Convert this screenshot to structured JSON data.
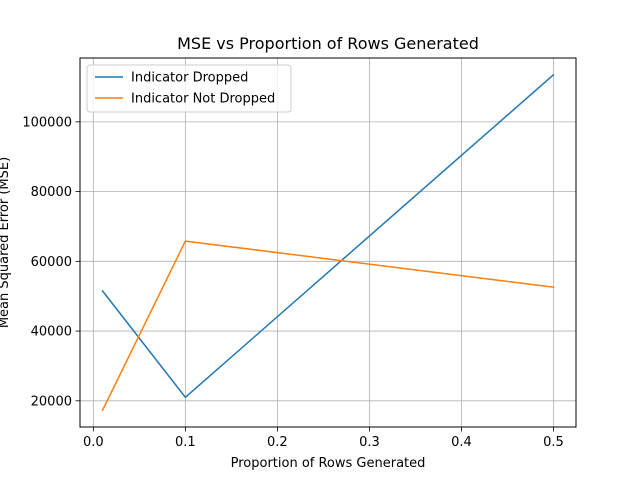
{
  "chart_data": {
    "type": "line",
    "title": "MSE vs Proportion of Rows Generated",
    "xlabel": "Proportion of Rows Generated",
    "ylabel": "Mean Squared Error (MSE)",
    "x": [
      0.01,
      0.1,
      0.5
    ],
    "series": [
      {
        "name": "Indicator Dropped",
        "color": "#1f77b4",
        "values": [
          51500,
          21000,
          113500
        ]
      },
      {
        "name": "Indicator Not Dropped",
        "color": "#ff7f0e",
        "values": [
          17300,
          65800,
          52600
        ]
      }
    ],
    "xlim": [
      -0.0145,
      0.5245
    ],
    "ylim": [
      12490,
      118310
    ],
    "xticks": [
      0.0,
      0.1,
      0.2,
      0.3,
      0.4,
      0.5
    ],
    "xtick_labels": [
      "0.0",
      "0.1",
      "0.2",
      "0.3",
      "0.4",
      "0.5"
    ],
    "yticks": [
      20000,
      40000,
      60000,
      80000,
      100000
    ],
    "ytick_labels": [
      "20000",
      "40000",
      "60000",
      "80000",
      "100000"
    ],
    "grid": true,
    "legend_position": "top-left"
  }
}
